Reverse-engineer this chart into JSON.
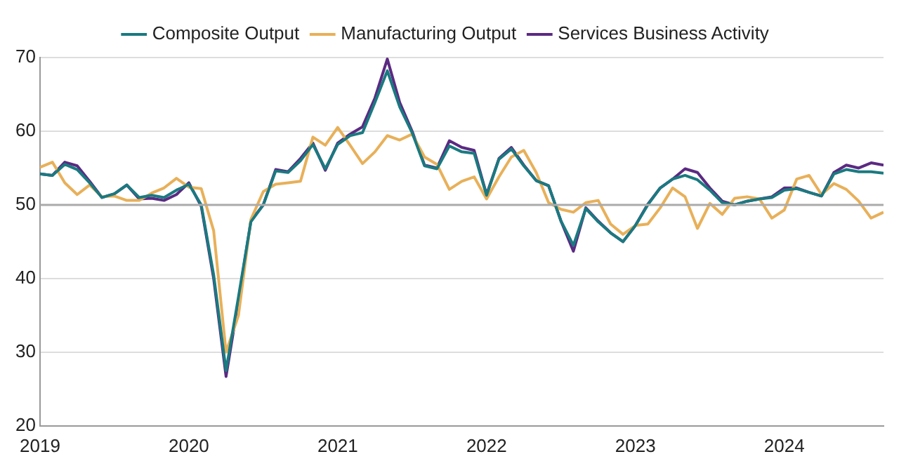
{
  "chart_data": {
    "type": "line",
    "x": [
      "2019-01",
      "2019-02",
      "2019-03",
      "2019-04",
      "2019-05",
      "2019-06",
      "2019-07",
      "2019-08",
      "2019-09",
      "2019-10",
      "2019-11",
      "2019-12",
      "2020-01",
      "2020-02",
      "2020-03",
      "2020-04",
      "2020-05",
      "2020-06",
      "2020-07",
      "2020-08",
      "2020-09",
      "2020-10",
      "2020-11",
      "2020-12",
      "2021-01",
      "2021-02",
      "2021-03",
      "2021-04",
      "2021-05",
      "2021-06",
      "2021-07",
      "2021-08",
      "2021-09",
      "2021-10",
      "2021-11",
      "2021-12",
      "2022-01",
      "2022-02",
      "2022-03",
      "2022-04",
      "2022-05",
      "2022-06",
      "2022-07",
      "2022-08",
      "2022-09",
      "2022-10",
      "2022-11",
      "2022-12",
      "2023-01",
      "2023-02",
      "2023-03",
      "2023-04",
      "2023-05",
      "2023-06",
      "2023-07",
      "2023-08",
      "2023-09",
      "2023-10",
      "2023-11",
      "2023-12",
      "2024-01",
      "2024-02",
      "2024-03",
      "2024-04",
      "2024-05",
      "2024-06",
      "2024-07",
      "2024-08",
      "2024-09"
    ],
    "series": [
      {
        "name": "Composite Output",
        "color": "#1a7a80",
        "values": [
          54.2,
          54.0,
          55.5,
          54.8,
          53.0,
          51.0,
          51.5,
          52.7,
          51.0,
          51.3,
          51.0,
          52.0,
          52.8,
          50.0,
          40.5,
          27.5,
          37.5,
          47.7,
          50.0,
          54.6,
          54.4,
          56.0,
          58.2,
          54.9,
          58.2,
          59.4,
          59.8,
          63.9,
          68.2,
          63.3,
          59.8,
          55.3,
          54.9,
          58.0,
          57.2,
          57.0,
          51.3,
          56.2,
          57.6,
          55.3,
          53.3,
          52.6,
          47.8,
          44.5,
          49.5,
          47.7,
          46.2,
          45.0,
          47.2,
          50.0,
          52.3,
          53.5,
          54.0,
          53.4,
          52.0,
          50.3,
          50.0,
          50.5,
          50.8,
          51.0,
          52.0,
          52.2,
          51.7,
          51.2,
          54.2,
          54.8,
          54.5,
          54.5,
          54.3
        ]
      },
      {
        "name": "Manufacturing Output",
        "color": "#e8b059",
        "values": [
          55.1,
          55.8,
          53.0,
          51.4,
          52.7,
          51.1,
          51.2,
          50.6,
          50.6,
          51.6,
          52.3,
          53.6,
          52.4,
          52.2,
          46.5,
          30.0,
          35.0,
          48.0,
          51.8,
          52.8,
          53.0,
          53.2,
          59.2,
          58.1,
          60.5,
          58.1,
          55.6,
          57.2,
          59.4,
          58.8,
          59.6,
          56.5,
          55.5,
          52.1,
          53.2,
          53.8,
          50.8,
          53.8,
          56.5,
          57.4,
          54.4,
          50.3,
          49.4,
          49.0,
          50.3,
          50.6,
          47.4,
          46.0,
          47.2,
          47.4,
          49.6,
          52.3,
          51.1,
          46.8,
          50.2,
          48.7,
          50.9,
          51.1,
          50.8,
          48.2,
          49.3,
          53.5,
          54.0,
          51.4,
          52.9,
          52.1,
          50.5,
          48.2,
          49.0
        ]
      },
      {
        "name": "Services Business Activity",
        "color": "#5b2a82",
        "values": [
          54.2,
          54.0,
          55.8,
          55.3,
          53.2,
          51.0,
          51.5,
          52.7,
          50.8,
          50.9,
          50.6,
          51.4,
          53.0,
          49.8,
          40.0,
          26.7,
          37.0,
          47.8,
          50.0,
          54.8,
          54.5,
          56.3,
          58.4,
          54.7,
          58.4,
          59.6,
          60.6,
          64.5,
          69.8,
          63.9,
          60.0,
          55.4,
          55.0,
          58.7,
          57.8,
          57.4,
          51.4,
          56.3,
          57.8,
          55.4,
          53.3,
          52.6,
          47.8,
          43.7,
          49.6,
          47.8,
          46.2,
          45.0,
          47.2,
          50.1,
          52.3,
          53.5,
          54.9,
          54.4,
          52.3,
          50.5,
          50.0,
          50.5,
          50.8,
          51.1,
          52.3,
          52.3,
          51.7,
          51.2,
          54.4,
          55.4,
          55.0,
          55.7,
          55.4
        ]
      }
    ],
    "xlim": [
      "2019-01",
      "2024-09"
    ],
    "xticks": [
      "2019",
      "2020",
      "2021",
      "2022",
      "2023",
      "2024"
    ],
    "ylim": [
      20,
      70
    ],
    "yticks": [
      20,
      30,
      40,
      50,
      60,
      70
    ],
    "ref_lines": [
      {
        "axis": "y",
        "value": 50,
        "color": "#aaaaaa"
      }
    ],
    "grid": "y",
    "legend": "top",
    "marker": "none",
    "line_style": "solid"
  }
}
